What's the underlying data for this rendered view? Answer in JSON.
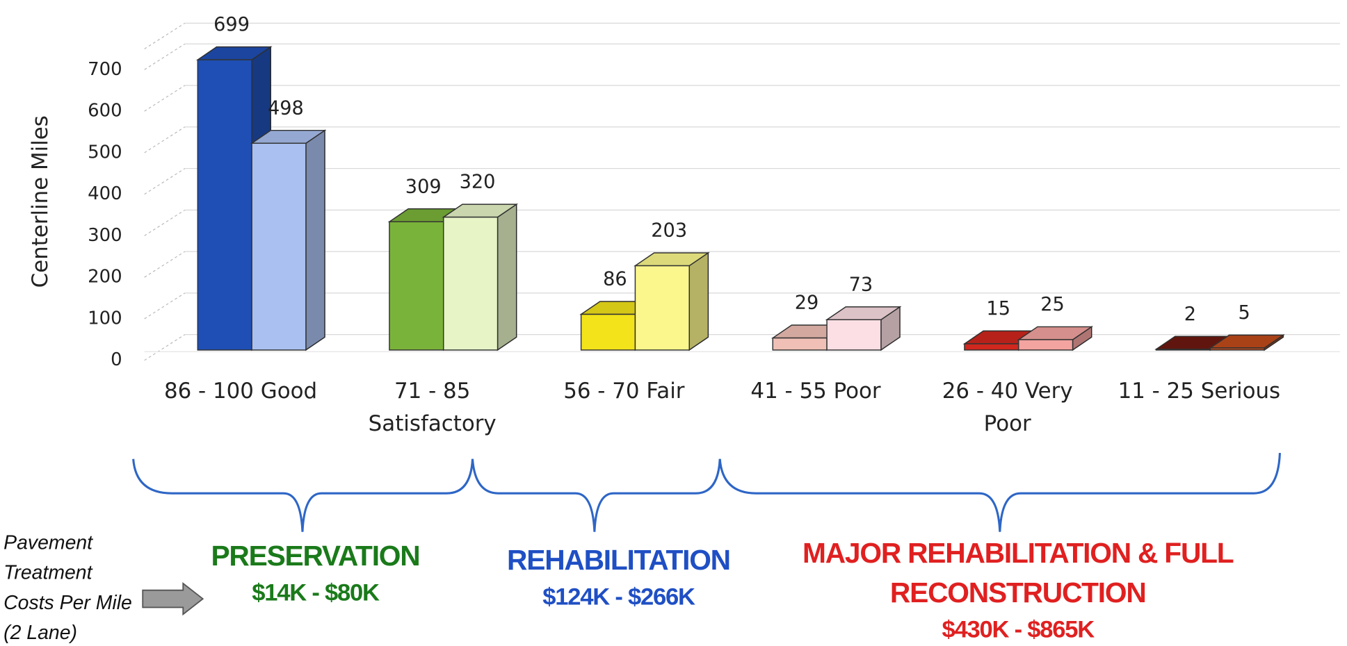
{
  "chart_data": {
    "type": "bar",
    "y_label": "Centerline Miles",
    "categories": [
      "86 - 100 Good",
      "71 - 85 Satisfactory",
      "56 - 70 Fair",
      "41 - 55 Poor",
      "26 - 40 Very Poor",
      "11 - 25 Serious"
    ],
    "series": [
      {
        "values": [
          699,
          309,
          86,
          29,
          15,
          2
        ],
        "colors": [
          "#1f4fb5",
          "#7ab33a",
          "#f2e31a",
          "#f0c0b6",
          "#d0271e",
          "#6e1a10"
        ]
      },
      {
        "values": [
          498,
          320,
          203,
          73,
          25,
          5
        ],
        "colors": [
          "#a9c0f0",
          "#e6f4c6",
          "#fbf78c",
          "#fbdfe4",
          "#f3a3a0",
          "#c24c1c"
        ]
      }
    ],
    "ylim": [
      0,
      750
    ],
    "yticks": [
      0,
      100,
      200,
      300,
      400,
      500,
      600,
      700
    ],
    "grid": true,
    "treatment_note": "Pavement Treatment Costs Per Mile (2 Lane)",
    "treatment_groups": [
      {
        "label": "PRESERVATION",
        "cost": "$14K - $80K",
        "color": "#1a7a1a"
      },
      {
        "label": "REHABILITATION",
        "cost": "$124K - $266K",
        "color": "#1f4fc4"
      },
      {
        "label": "MAJOR REHABILITATION & FULL RECONSTRUCTION",
        "cost": "$430K - $865K",
        "color": "#e02020"
      }
    ]
  }
}
